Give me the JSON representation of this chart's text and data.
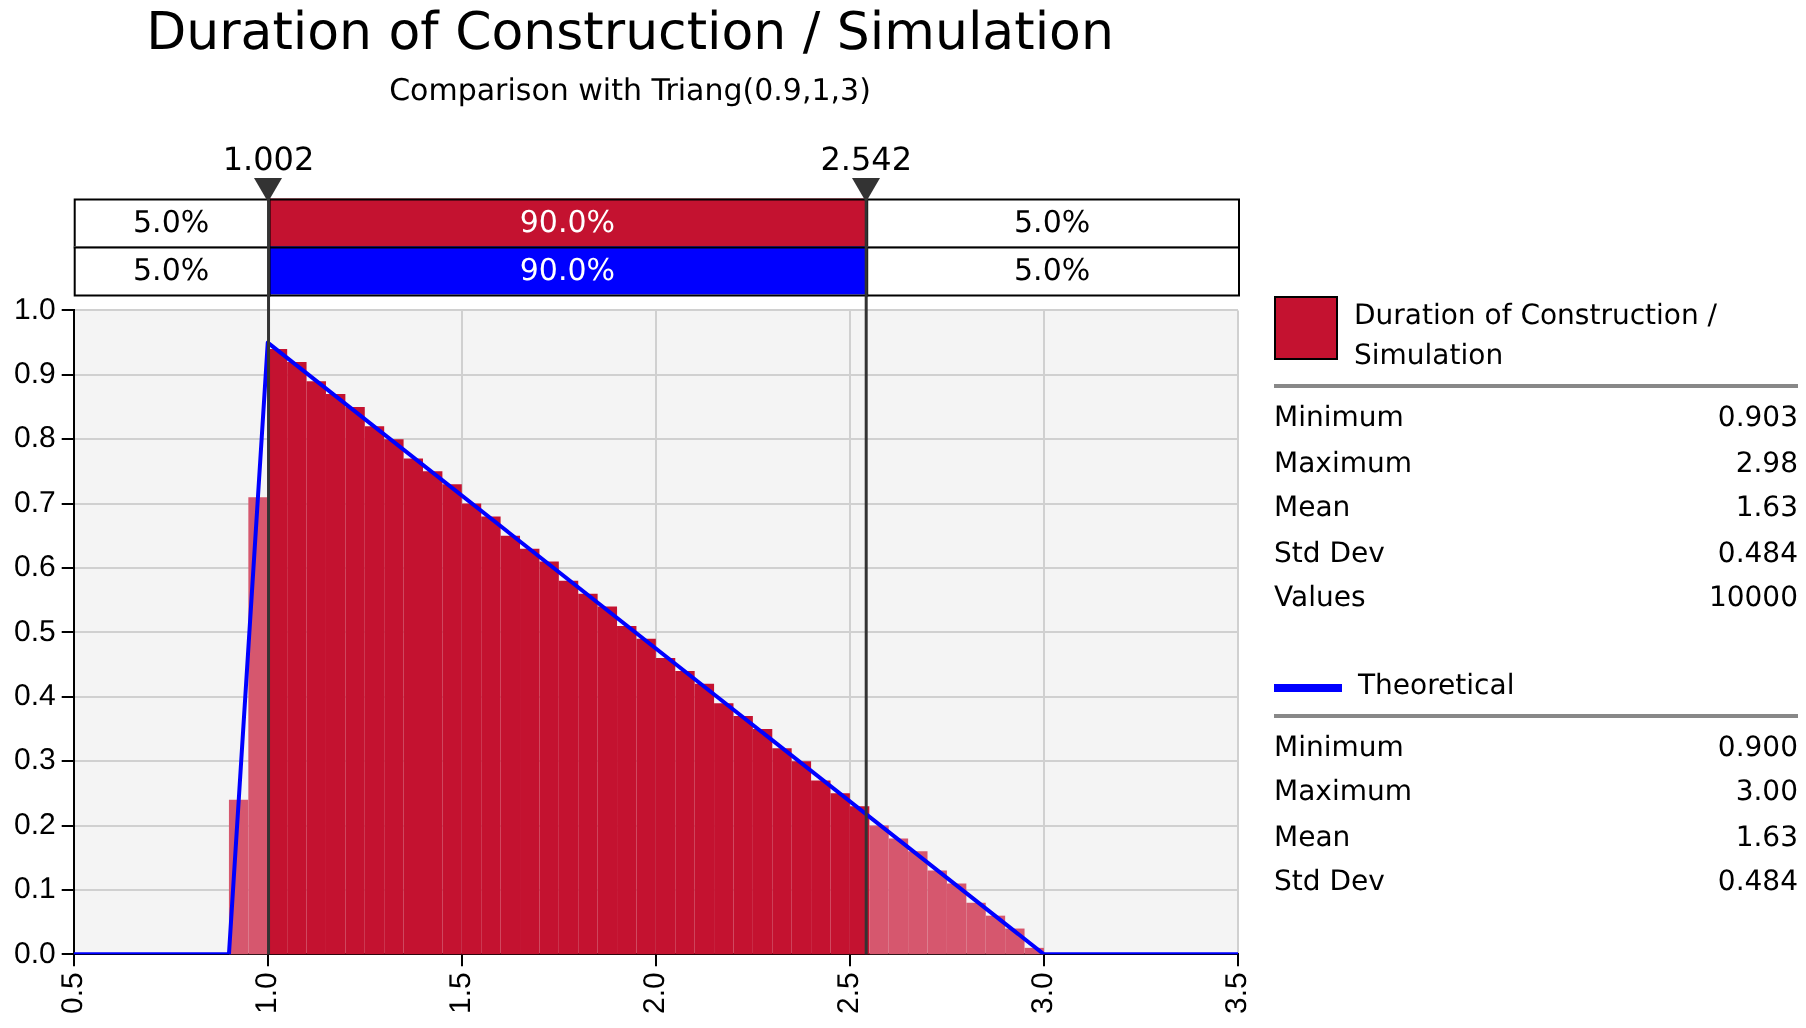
{
  "chart_data": {
    "type": "histogram",
    "title": "Duration of Construction / Simulation",
    "subtitle": "Comparison with Triang(0.9,1,3)",
    "bins": [
      0.9,
      0.95,
      1.0,
      1.05,
      1.1,
      1.15,
      1.2,
      1.25,
      1.3,
      1.35,
      1.4,
      1.45,
      1.5,
      1.55,
      1.6,
      1.65,
      1.7,
      1.75,
      1.8,
      1.85,
      1.9,
      1.95,
      2.0,
      2.05,
      2.1,
      2.15,
      2.2,
      2.25,
      2.3,
      2.35,
      2.4,
      2.45,
      2.5,
      2.55,
      2.6,
      2.65,
      2.7,
      2.75,
      2.8,
      2.85,
      2.9,
      2.95,
      3.0
    ],
    "series": [
      {
        "name": "Duration of Construction / Simulation",
        "color": "#c41230",
        "colors": [
          "#d6576e",
          "#d6576e",
          "#c41230",
          "#c41230",
          "#c41230",
          "#c41230",
          "#c41230",
          "#c41230",
          "#c41230",
          "#c41230",
          "#c41230",
          "#c41230",
          "#c41230",
          "#c41230",
          "#c41230",
          "#c41230",
          "#c41230",
          "#c41230",
          "#c41230",
          "#c41230",
          "#c41230",
          "#c41230",
          "#c41230",
          "#c41230",
          "#c41230",
          "#c41230",
          "#c41230",
          "#c41230",
          "#c41230",
          "#c41230",
          "#c41230",
          "#c41230",
          "#c41230",
          "#d6576e",
          "#d6576e",
          "#d6576e",
          "#d6576e",
          "#d6576e",
          "#d6576e",
          "#d6576e",
          "#d6576e",
          "#d6576e"
        ],
        "values": [
          0.24,
          0.71,
          0.94,
          0.92,
          0.89,
          0.87,
          0.85,
          0.82,
          0.8,
          0.77,
          0.75,
          0.73,
          0.7,
          0.68,
          0.65,
          0.63,
          0.61,
          0.58,
          0.56,
          0.54,
          0.51,
          0.49,
          0.46,
          0.44,
          0.42,
          0.39,
          0.37,
          0.35,
          0.32,
          0.3,
          0.27,
          0.25,
          0.23,
          0.2,
          0.18,
          0.16,
          0.13,
          0.11,
          0.08,
          0.06,
          0.04,
          0.01
        ]
      },
      {
        "name": "Theoretical",
        "type": "line",
        "color": "#0000ff",
        "x": [
          0.5,
          0.9,
          1.0,
          3.0,
          3.5
        ],
        "values": [
          0,
          0,
          0.95,
          0,
          0
        ]
      }
    ],
    "xlim": [
      0.5,
      3.5
    ],
    "xticks": [
      {
        "value": 0.5,
        "label": "0.5"
      },
      {
        "value": 1,
        "label": "1.0"
      },
      {
        "value": 1.5,
        "label": "1.5"
      },
      {
        "value": 2,
        "label": "2.0"
      },
      {
        "value": 2.5,
        "label": "2.5"
      },
      {
        "value": 3,
        "label": "3.0"
      },
      {
        "value": 3.5,
        "label": "3.5"
      }
    ],
    "ylim": [
      0,
      1
    ],
    "yticks": [
      {
        "value": 0,
        "label": "0.0"
      },
      0.1,
      0.2,
      0.3,
      0.4,
      0.5,
      0.6,
      0.7,
      0.8,
      0.9,
      {
        "value": 1,
        "label": "1.0"
      }
    ],
    "grid": true,
    "legend": "right",
    "ref_lines": [
      {
        "axis": "x",
        "value": 1.002,
        "label": "1.002"
      },
      {
        "axis": "x",
        "value": 2.542,
        "label": "2.542"
      }
    ],
    "annotations": [
      "5.0%",
      "90.0%",
      "5.0%",
      "5.0%",
      "90.0%",
      "5.0%",
      "Minimum",
      "0.903",
      "Maximum",
      "2.98",
      "Mean",
      "1.63",
      "Std Dev",
      "0.484",
      "Values",
      "10000",
      "Minimum",
      "0.900",
      "Maximum",
      "3.00",
      "Mean",
      "1.63",
      "Std Dev",
      "0.484"
    ]
  }
}
